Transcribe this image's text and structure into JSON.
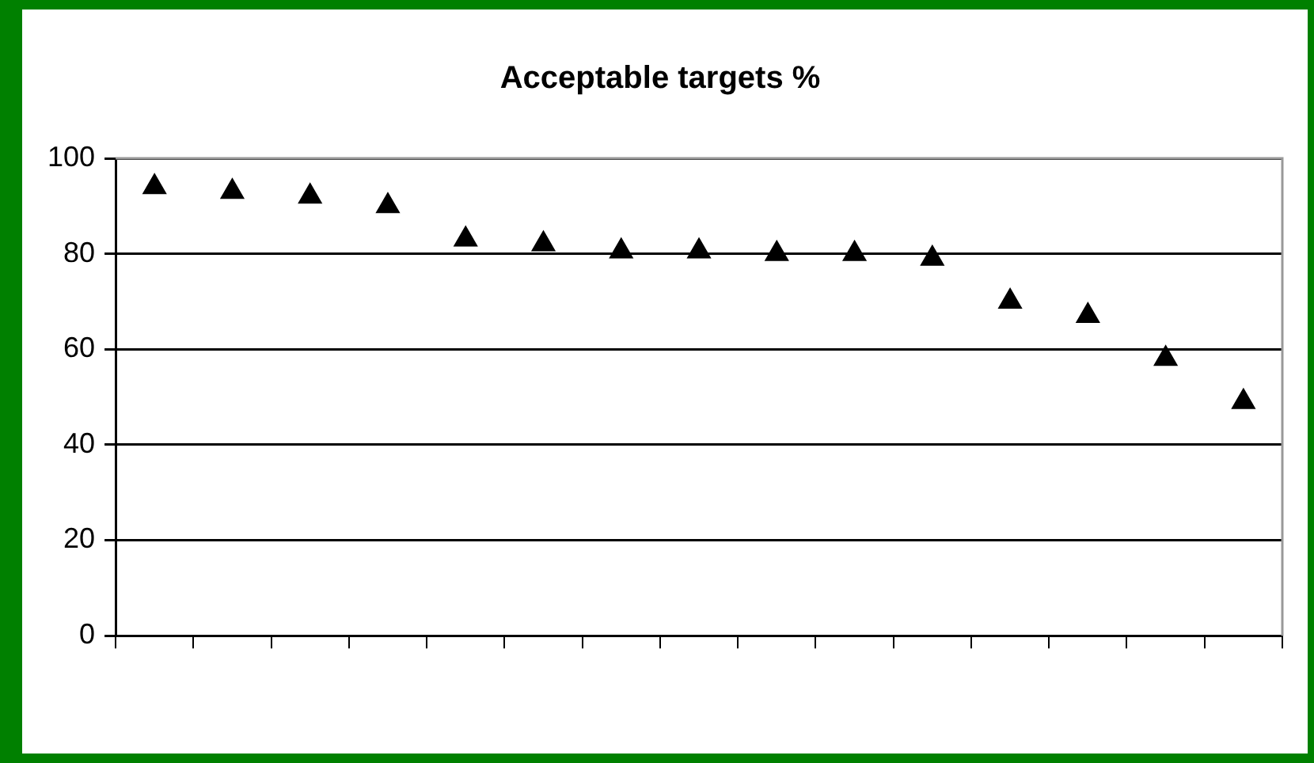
{
  "chart_data": {
    "type": "scatter",
    "title": "Acceptable targets %",
    "categories": [
      null,
      null,
      null,
      null,
      null,
      null,
      null,
      null,
      null,
      null,
      null,
      null,
      null,
      null,
      null
    ],
    "series": [
      {
        "color": "#000000",
        "values": [
          94,
          93,
          92,
          90,
          83,
          82,
          80.5,
          80.5,
          80,
          80,
          79,
          70,
          67,
          58,
          49
        ]
      }
    ],
    "ylim": [
      0,
      100
    ],
    "yticks": [
      0,
      20,
      40,
      60,
      80,
      100
    ],
    "grid": "y",
    "marker": "triangle",
    "legend": false
  }
}
